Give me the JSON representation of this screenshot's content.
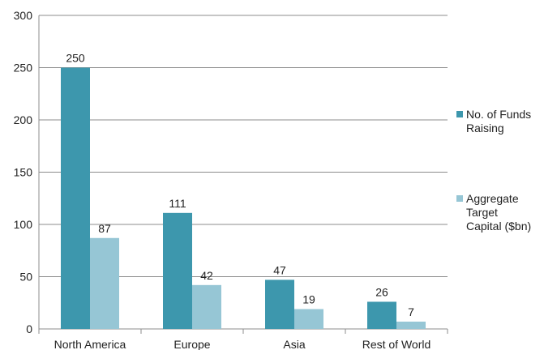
{
  "chart_data": {
    "type": "bar",
    "categories": [
      "North America",
      "Europe",
      "Asia",
      "Rest of World"
    ],
    "series": [
      {
        "name": "No. of Funds Raising",
        "values": [
          250,
          111,
          47,
          26
        ],
        "color": "#3d97ad"
      },
      {
        "name": "Aggregate Target Capital ($bn)",
        "values": [
          87,
          42,
          19,
          7
        ],
        "color": "#96c6d5"
      }
    ],
    "legend": {
      "placement": "right",
      "entries": [
        {
          "lines": [
            "No. of Funds",
            "Raising"
          ]
        },
        {
          "lines": [
            "Aggregate",
            "Target",
            "Capital ($bn)"
          ]
        }
      ]
    },
    "ylim": [
      0,
      300
    ],
    "yticks": [
      0,
      50,
      100,
      150,
      200,
      250,
      300
    ],
    "grid": true,
    "xlabel": "",
    "ylabel": ""
  }
}
